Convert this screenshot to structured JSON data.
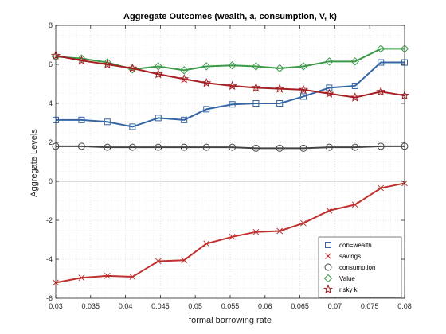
{
  "chart_data": {
    "type": "line",
    "title": "Aggregate Outcomes (wealth, a, consumption, V, k)",
    "xlabel": "formal borrowing rate",
    "ylabel": "Aggregate Levels",
    "xlim": [
      0.03,
      0.08
    ],
    "ylim": [
      -6,
      8
    ],
    "grid": "on (major + minor, dotted)",
    "legend_position": "bottom-right",
    "x_ticks": [
      "0.03",
      "0.035",
      "0.04",
      "0.045",
      "0.05",
      "0.055",
      "0.06",
      "0.065",
      "0.07",
      "0.075",
      "0.08"
    ],
    "y_ticks": [
      "-6",
      "-4",
      "-2",
      "0",
      "2",
      "4",
      "6",
      "8"
    ],
    "x": [
      0.03,
      0.0337,
      0.0374,
      0.041,
      0.0447,
      0.0484,
      0.0516,
      0.0553,
      0.0587,
      0.0621,
      0.0655,
      0.0692,
      0.0729,
      0.0766,
      0.08
    ],
    "series": [
      {
        "name": "coh=wealth",
        "marker": "square",
        "color": "#3465a4",
        "values": [
          3.15,
          3.15,
          3.05,
          2.8,
          3.25,
          3.15,
          3.7,
          3.95,
          4.0,
          4.0,
          4.35,
          4.8,
          4.9,
          6.1,
          6.1
        ]
      },
      {
        "name": "savings",
        "marker": "x",
        "color": "#c0302e",
        "values": [
          -5.2,
          -4.95,
          -4.85,
          -4.9,
          -4.1,
          -4.05,
          -3.2,
          -2.85,
          -2.6,
          -2.55,
          -2.15,
          -1.5,
          -1.2,
          -0.35,
          -0.1
        ]
      },
      {
        "name": "consumption",
        "marker": "circle",
        "color": "#444444",
        "values": [
          1.8,
          1.8,
          1.75,
          1.75,
          1.75,
          1.75,
          1.75,
          1.75,
          1.7,
          1.7,
          1.7,
          1.75,
          1.75,
          1.8,
          1.8
        ]
      },
      {
        "name": "Value",
        "marker": "diamond",
        "color": "#3a9a48",
        "values": [
          6.4,
          6.3,
          6.1,
          5.75,
          5.9,
          5.7,
          5.9,
          5.95,
          5.9,
          5.8,
          5.9,
          6.15,
          6.15,
          6.8,
          6.8
        ]
      },
      {
        "name": "risky k",
        "marker": "star",
        "color": "#a41e22",
        "values": [
          6.45,
          6.2,
          6.0,
          5.8,
          5.5,
          5.25,
          5.05,
          4.9,
          4.8,
          4.75,
          4.7,
          4.5,
          4.3,
          4.6,
          4.4
        ]
      }
    ]
  }
}
